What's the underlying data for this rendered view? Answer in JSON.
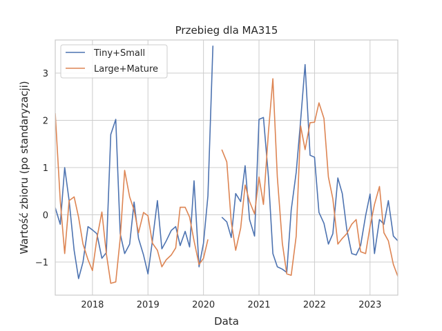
{
  "chart_data": {
    "type": "line",
    "title": "Przebieg dla MA315",
    "xlabel": "Data",
    "ylabel": "Wartość zbioru (po standaryzacji)",
    "xlim": [
      2017.33,
      2023.5
    ],
    "ylim": [
      -1.7,
      3.7
    ],
    "x_ticks": [
      2018,
      2019,
      2020,
      2021,
      2022,
      2023
    ],
    "x_tick_labels": [
      "2018",
      "2019",
      "2020",
      "2021",
      "2022",
      "2023"
    ],
    "y_ticks": [
      -1,
      0,
      1,
      2,
      3
    ],
    "y_tick_labels": [
      "−1",
      "0",
      "1",
      "2",
      "3"
    ],
    "grid": true,
    "legend_position": "top-left",
    "series": [
      {
        "name": "Tiny+Small",
        "color": "#4c72b0",
        "x": [
          2017.33,
          2017.42,
          2017.5,
          2017.58,
          2017.67,
          2017.75,
          2017.83,
          2017.92,
          2018.0,
          2018.08,
          2018.17,
          2018.25,
          2018.33,
          2018.42,
          2018.5,
          2018.58,
          2018.67,
          2018.75,
          2018.83,
          2018.92,
          2019.0,
          2019.08,
          2019.17,
          2019.25,
          2019.33,
          2019.42,
          2019.5,
          2019.58,
          2019.67,
          2019.75,
          2019.83,
          2019.92,
          2020.0,
          2020.08,
          2020.17,
          2020.25,
          2020.33,
          2020.42,
          2020.5,
          2020.58,
          2020.67,
          2020.75,
          2020.83,
          2020.92,
          2021.0,
          2021.08,
          2021.17,
          2021.25,
          2021.33,
          2021.42,
          2021.5,
          2021.58,
          2021.67,
          2021.75,
          2021.83,
          2021.92,
          2022.0,
          2022.08,
          2022.17,
          2022.25,
          2022.33,
          2022.42,
          2022.5,
          2022.58,
          2022.67,
          2022.75,
          2022.83,
          2022.92,
          2023.0,
          2023.08,
          2023.17,
          2023.25,
          2023.33,
          2023.42,
          2023.5
        ],
        "y": [
          0.15,
          -0.2,
          1.0,
          0.3,
          -0.75,
          -1.35,
          -1.0,
          -0.25,
          -0.32,
          -0.4,
          -0.92,
          -0.8,
          1.7,
          2.02,
          -0.4,
          -0.82,
          -0.62,
          0.27,
          -0.5,
          -0.85,
          -1.25,
          -0.55,
          0.3,
          -0.72,
          -0.55,
          -0.33,
          -0.25,
          -0.65,
          -0.35,
          -0.68,
          0.72,
          -1.1,
          -0.6,
          0.4,
          3.58,
          null,
          -0.05,
          -0.15,
          -0.48,
          0.45,
          0.28,
          1.04,
          -0.1,
          -0.45,
          2.02,
          2.06,
          0.8,
          -0.82,
          -1.1,
          -1.15,
          -1.22,
          0.1,
          0.9,
          2.0,
          3.18,
          1.26,
          1.22,
          0.05,
          -0.18,
          -0.62,
          -0.4,
          0.78,
          0.45,
          -0.3,
          -0.82,
          -0.85,
          -0.65,
          -0.02,
          0.44,
          -0.82,
          -0.1,
          -0.2,
          0.3,
          -0.45,
          -0.55
        ]
      },
      {
        "name": "Large+Mature",
        "color": "#dd8452",
        "x": [
          2017.33,
          2017.42,
          2017.5,
          2017.58,
          2017.67,
          2017.75,
          2017.83,
          2017.92,
          2018.0,
          2018.08,
          2018.17,
          2018.25,
          2018.33,
          2018.42,
          2018.5,
          2018.58,
          2018.67,
          2018.75,
          2018.83,
          2018.92,
          2019.0,
          2019.08,
          2019.17,
          2019.25,
          2019.33,
          2019.42,
          2019.5,
          2019.58,
          2019.67,
          2019.75,
          2019.83,
          2019.92,
          2020.0,
          2020.08,
          2020.17,
          2020.25,
          2020.33,
          2020.42,
          2020.5,
          2020.58,
          2020.67,
          2020.75,
          2020.83,
          2020.92,
          2021.0,
          2021.08,
          2021.17,
          2021.25,
          2021.33,
          2021.42,
          2021.5,
          2021.58,
          2021.67,
          2021.75,
          2021.83,
          2021.92,
          2022.0,
          2022.08,
          2022.17,
          2022.25,
          2022.33,
          2022.42,
          2022.5,
          2022.58,
          2022.67,
          2022.75,
          2022.83,
          2022.92,
          2023.0,
          2023.08,
          2023.17,
          2023.25,
          2023.33,
          2023.42,
          2023.5
        ],
        "y": [
          2.15,
          0.3,
          -0.82,
          0.3,
          0.38,
          -0.05,
          -0.62,
          -0.95,
          -1.18,
          -0.5,
          0.06,
          -0.82,
          -1.45,
          -1.42,
          -0.5,
          0.94,
          0.38,
          0.1,
          -0.38,
          0.05,
          -0.02,
          -0.6,
          -0.75,
          -1.1,
          -0.95,
          -0.85,
          -0.7,
          0.16,
          0.16,
          -0.05,
          -0.55,
          -1.05,
          -0.92,
          -0.52,
          null,
          null,
          1.38,
          1.12,
          -0.15,
          -0.75,
          -0.28,
          0.63,
          0.28,
          0.02,
          0.8,
          0.22,
          1.75,
          2.88,
          0.8,
          -0.6,
          -1.25,
          -1.28,
          -0.45,
          1.88,
          1.38,
          1.95,
          1.96,
          2.37,
          2.04,
          0.8,
          0.34,
          -0.62,
          -0.5,
          -0.4,
          -0.2,
          -0.1,
          -0.78,
          -0.82,
          -0.25,
          0.22,
          0.6,
          -0.38,
          -0.55,
          -1.05,
          -1.3
        ]
      }
    ]
  }
}
